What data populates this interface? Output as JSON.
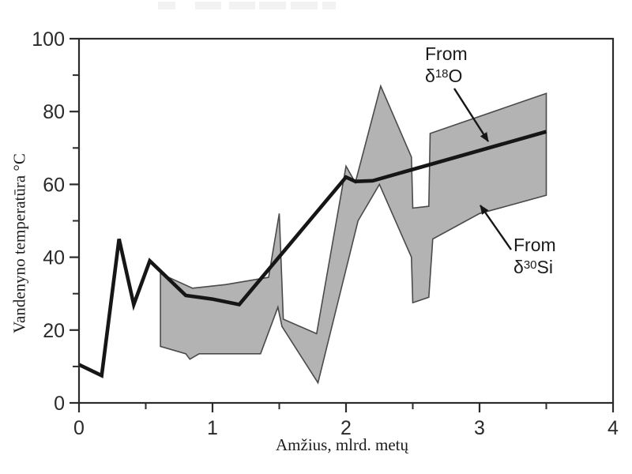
{
  "figure": {
    "y_axis_label": "Vandenyno temperatūra °C",
    "x_axis_label": "Amžius, mlrd. metų"
  },
  "annotations": {
    "o18": {
      "word": "From",
      "delta": "δ",
      "sup": "18",
      "element": "O",
      "meaning": "arrow points to thick line"
    },
    "si30": {
      "word": "From",
      "delta": "δ",
      "sup": "30",
      "element": "Si",
      "meaning": "arrow points to gray band"
    }
  },
  "chart_data": {
    "type": "line",
    "title": "",
    "xlabel": "Amžius, mlrd. metų",
    "ylabel": "Vandenyno temperatūra °C",
    "xlim": [
      0,
      4
    ],
    "ylim": [
      0,
      100
    ],
    "x_major_ticks": [
      0,
      1,
      2,
      3,
      4
    ],
    "x_minor_ticks": [
      0.5,
      1.5,
      2.5,
      3.5
    ],
    "y_major_ticks": [
      0,
      20,
      40,
      60,
      80,
      100
    ],
    "y_minor_ticks": [
      10,
      30,
      50,
      70,
      90
    ],
    "grid": false,
    "legend": "in-plot text callouts with arrows",
    "series": [
      {
        "name": "From δ18O",
        "kind": "thick-line",
        "points": [
          [
            0,
            10.5
          ],
          [
            0.17,
            7.5
          ],
          [
            0.3,
            45
          ],
          [
            0.41,
            27
          ],
          [
            0.53,
            39
          ],
          [
            0.8,
            29.5
          ],
          [
            1.0,
            28.5
          ],
          [
            1.2,
            27
          ],
          [
            2.0,
            62
          ],
          [
            2.07,
            60.8
          ],
          [
            2.2,
            61
          ],
          [
            3.5,
            74.5
          ]
        ]
      },
      {
        "name": "From δ30Si",
        "kind": "uncertainty-band",
        "top_edge": [
          [
            0.61,
            35.5
          ],
          [
            0.85,
            31.5
          ],
          [
            1.1,
            32.5
          ],
          [
            1.42,
            34.5
          ],
          [
            1.5,
            52
          ],
          [
            1.53,
            23
          ],
          [
            1.78,
            19
          ],
          [
            2.0,
            65
          ],
          [
            2.07,
            60.5
          ],
          [
            2.26,
            87
          ],
          [
            2.49,
            67.5
          ],
          [
            2.5,
            53.5
          ],
          [
            2.62,
            54
          ],
          [
            2.63,
            74
          ],
          [
            3.5,
            85
          ]
        ],
        "bottom_edge": [
          [
            0.61,
            15.5
          ],
          [
            0.8,
            13.5
          ],
          [
            0.83,
            12
          ],
          [
            0.9,
            13.5
          ],
          [
            1.36,
            13.5
          ],
          [
            1.49,
            26.3
          ],
          [
            1.52,
            21
          ],
          [
            1.79,
            5.5
          ],
          [
            2.09,
            50
          ],
          [
            2.25,
            60
          ],
          [
            2.49,
            40
          ],
          [
            2.5,
            27.5
          ],
          [
            2.62,
            29
          ],
          [
            2.65,
            45
          ],
          [
            3.0,
            52
          ],
          [
            3.5,
            57
          ]
        ]
      }
    ],
    "colors": {
      "line": "#161616",
      "band_fill": "#b3b3b3",
      "band_edge": "#4a4a4a",
      "axis": "#2b2b2b",
      "tick_label": "#2a2a2a"
    }
  }
}
